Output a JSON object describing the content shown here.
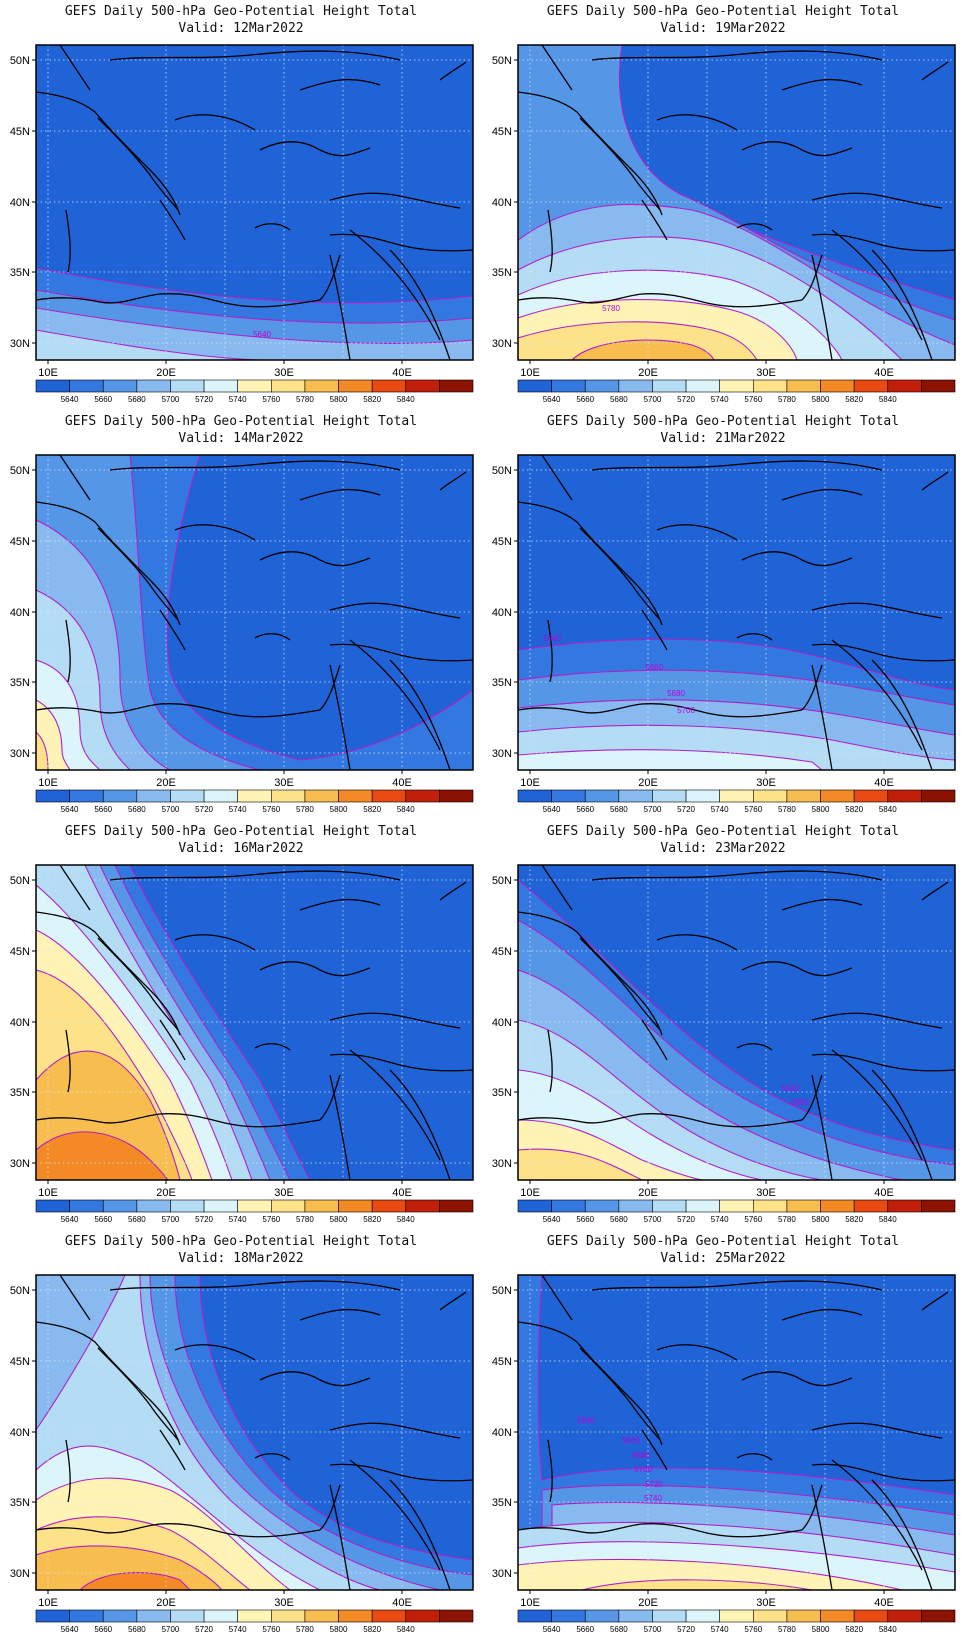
{
  "figure": {
    "colorbar": {
      "levels": [
        "5640",
        "5660",
        "5680",
        "5700",
        "5720",
        "5740",
        "5760",
        "5780",
        "5800",
        "5820",
        "5840"
      ],
      "colors": [
        "#1f63d6",
        "#3378e0",
        "#5696e6",
        "#88b9ef",
        "#b4dcf5",
        "#dcf5fb",
        "#fff4b6",
        "#fde28a",
        "#f7bd4f",
        "#f38a26",
        "#e84a12",
        "#c11f0a",
        "#8c1202"
      ]
    },
    "lat_ticks": [
      "50N",
      "45N",
      "40N",
      "35N",
      "30N"
    ],
    "lon_ticks": [
      "10E",
      "20E",
      "30E",
      "40E"
    ]
  },
  "panels": [
    {
      "title": "GEFS Daily 500-hPa Geo-Potential Height Total",
      "valid": "Valid: 12Mar2022",
      "labels": [
        {
          "text": "5640"
        }
      ]
    },
    {
      "title": "GEFS Daily 500-hPa Geo-Potential Height Total",
      "valid": "Valid: 19Mar2022",
      "labels": [
        {
          "text": "5780"
        }
      ]
    },
    {
      "title": "GEFS Daily 500-hPa Geo-Potential Height Total",
      "valid": "Valid: 14Mar2022",
      "labels": []
    },
    {
      "title": "GEFS Daily 500-hPa Geo-Potential Height Total",
      "valid": "Valid: 21Mar2022",
      "labels": [
        {
          "text": "5640"
        },
        {
          "text": "5660"
        },
        {
          "text": "5680"
        },
        {
          "text": "5700"
        }
      ]
    },
    {
      "title": "GEFS Daily 500-hPa Geo-Potential Height Total",
      "valid": "Valid: 16Mar2022",
      "labels": []
    },
    {
      "title": "GEFS Daily 500-hPa Geo-Potential Height Total",
      "valid": "Valid: 23Mar2022",
      "labels": [
        {
          "text": "5640"
        },
        {
          "text": "5660"
        }
      ]
    },
    {
      "title": "GEFS Daily 500-hPa Geo-Potential Height Total",
      "valid": "Valid: 18Mar2022",
      "labels": []
    },
    {
      "title": "GEFS Daily 500-hPa Geo-Potential Height Total",
      "valid": "Valid: 25Mar2022",
      "labels": [
        {
          "text": "5640"
        },
        {
          "text": "5660"
        },
        {
          "text": "5680"
        },
        {
          "text": "5700"
        },
        {
          "text": "5720"
        },
        {
          "text": "5740"
        }
      ]
    }
  ]
}
